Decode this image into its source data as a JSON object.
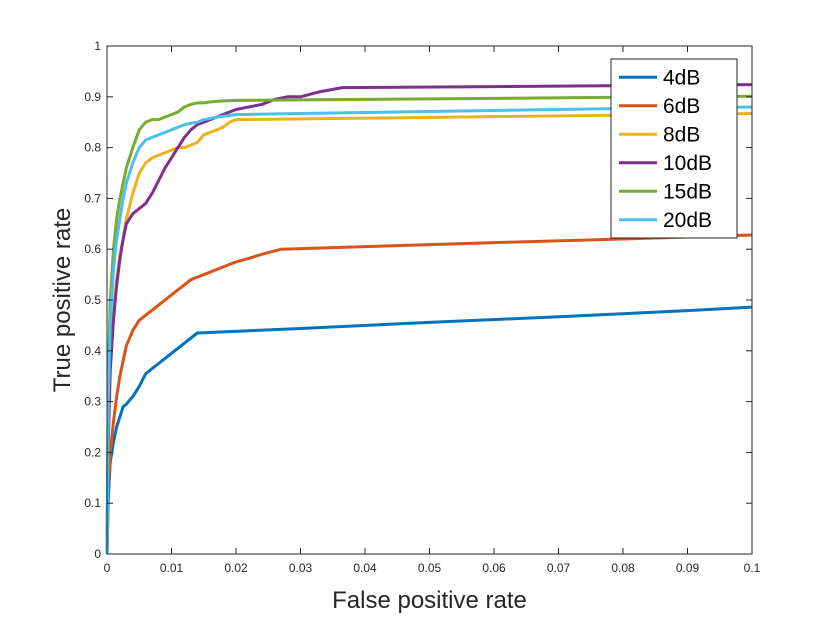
{
  "chart_data": {
    "type": "line",
    "title": "",
    "xlabel": "False positive rate",
    "ylabel": "True positive rate",
    "xlim": [
      0,
      0.1
    ],
    "ylim": [
      0,
      1
    ],
    "xticks": [
      0,
      0.01,
      0.02,
      0.03,
      0.04,
      0.05,
      0.06,
      0.07,
      0.08,
      0.09,
      0.1
    ],
    "xtick_labels": [
      "0",
      "0.01",
      "0.02",
      "0.03",
      "0.04",
      "0.05",
      "0.06",
      "0.07",
      "0.08",
      "0.09",
      "0.1"
    ],
    "yticks": [
      0,
      0.1,
      0.2,
      0.3,
      0.4,
      0.5,
      0.6,
      0.7,
      0.8,
      0.9,
      1
    ],
    "ytick_labels": [
      "0",
      "0.1",
      "0.2",
      "0.3",
      "0.4",
      "0.5",
      "0.6",
      "0.7",
      "0.8",
      "0.9",
      "1"
    ],
    "grid": false,
    "legend_position": "top-right",
    "series": [
      {
        "name": "4dB",
        "color": "#0072BD",
        "x": [
          0,
          0.0002,
          0.0005,
          0.001,
          0.0015,
          0.002,
          0.0025,
          0.003,
          0.004,
          0.005,
          0.006,
          0.007,
          0.008,
          0.009,
          0.01,
          0.011,
          0.012,
          0.013,
          0.014,
          0.03,
          0.05,
          0.07,
          0.09,
          0.1
        ],
        "y": [
          0,
          0.11,
          0.18,
          0.22,
          0.25,
          0.27,
          0.29,
          0.295,
          0.31,
          0.33,
          0.355,
          0.365,
          0.375,
          0.385,
          0.395,
          0.405,
          0.415,
          0.425,
          0.435,
          0.444,
          0.456,
          0.467,
          0.479,
          0.486
        ]
      },
      {
        "name": "6dB",
        "color": "#D95319",
        "x": [
          0,
          0.0002,
          0.0005,
          0.001,
          0.0015,
          0.002,
          0.0025,
          0.003,
          0.004,
          0.005,
          0.006,
          0.007,
          0.008,
          0.009,
          0.01,
          0.011,
          0.012,
          0.013,
          0.014,
          0.015,
          0.016,
          0.017,
          0.018,
          0.02,
          0.022,
          0.024,
          0.027,
          0.04,
          0.06,
          0.08,
          0.1
        ],
        "y": [
          0,
          0.12,
          0.2,
          0.26,
          0.31,
          0.35,
          0.38,
          0.41,
          0.44,
          0.46,
          0.47,
          0.48,
          0.49,
          0.5,
          0.51,
          0.52,
          0.53,
          0.54,
          0.545,
          0.55,
          0.555,
          0.56,
          0.565,
          0.575,
          0.582,
          0.59,
          0.6,
          0.605,
          0.613,
          0.62,
          0.628
        ]
      },
      {
        "name": "8dB",
        "color": "#EDB120",
        "x": [
          0,
          0.0002,
          0.0005,
          0.001,
          0.0015,
          0.002,
          0.0025,
          0.003,
          0.004,
          0.005,
          0.006,
          0.007,
          0.008,
          0.009,
          0.01,
          0.011,
          0.012,
          0.013,
          0.014,
          0.015,
          0.016,
          0.017,
          0.018,
          0.019,
          0.02,
          0.04,
          0.06,
          0.08,
          0.1
        ],
        "y": [
          0,
          0.25,
          0.38,
          0.47,
          0.54,
          0.59,
          0.62,
          0.66,
          0.71,
          0.75,
          0.77,
          0.78,
          0.785,
          0.79,
          0.795,
          0.8,
          0.8,
          0.805,
          0.81,
          0.825,
          0.83,
          0.835,
          0.84,
          0.85,
          0.855,
          0.858,
          0.861,
          0.864,
          0.867
        ]
      },
      {
        "name": "10dB",
        "color": "#7E2F8E",
        "x": [
          0,
          0.0002,
          0.0005,
          0.001,
          0.0015,
          0.002,
          0.0025,
          0.003,
          0.004,
          0.005,
          0.006,
          0.007,
          0.008,
          0.009,
          0.01,
          0.011,
          0.012,
          0.013,
          0.014,
          0.015,
          0.016,
          0.018,
          0.02,
          0.022,
          0.024,
          0.026,
          0.028,
          0.03,
          0.033,
          0.0365,
          0.06,
          0.08,
          0.1
        ],
        "y": [
          0,
          0.22,
          0.36,
          0.46,
          0.53,
          0.58,
          0.62,
          0.65,
          0.67,
          0.68,
          0.69,
          0.71,
          0.735,
          0.76,
          0.78,
          0.8,
          0.82,
          0.835,
          0.845,
          0.85,
          0.855,
          0.865,
          0.875,
          0.88,
          0.885,
          0.895,
          0.9,
          0.9,
          0.91,
          0.918,
          0.92,
          0.922,
          0.924
        ]
      },
      {
        "name": "15dB",
        "color": "#77AC30",
        "x": [
          0,
          0.0002,
          0.0005,
          0.001,
          0.0015,
          0.002,
          0.0025,
          0.003,
          0.004,
          0.005,
          0.006,
          0.007,
          0.008,
          0.009,
          0.01,
          0.011,
          0.012,
          0.013,
          0.014,
          0.015,
          0.016,
          0.018,
          0.02,
          0.04,
          0.06,
          0.08,
          0.1
        ],
        "y": [
          0,
          0.35,
          0.5,
          0.6,
          0.66,
          0.7,
          0.73,
          0.76,
          0.8,
          0.835,
          0.85,
          0.855,
          0.855,
          0.86,
          0.865,
          0.87,
          0.88,
          0.885,
          0.888,
          0.888,
          0.89,
          0.892,
          0.893,
          0.895,
          0.897,
          0.899,
          0.901
        ]
      },
      {
        "name": "20dB",
        "color": "#4DBEEE",
        "x": [
          0,
          0.0002,
          0.0005,
          0.001,
          0.0015,
          0.002,
          0.0025,
          0.003,
          0.004,
          0.005,
          0.006,
          0.007,
          0.008,
          0.009,
          0.01,
          0.011,
          0.012,
          0.013,
          0.014,
          0.015,
          0.017,
          0.02,
          0.04,
          0.06,
          0.08,
          0.1
        ],
        "y": [
          0,
          0.3,
          0.45,
          0.56,
          0.62,
          0.66,
          0.7,
          0.73,
          0.77,
          0.8,
          0.815,
          0.82,
          0.825,
          0.83,
          0.835,
          0.84,
          0.845,
          0.848,
          0.85,
          0.855,
          0.86,
          0.865,
          0.869,
          0.873,
          0.877,
          0.88
        ]
      }
    ]
  }
}
